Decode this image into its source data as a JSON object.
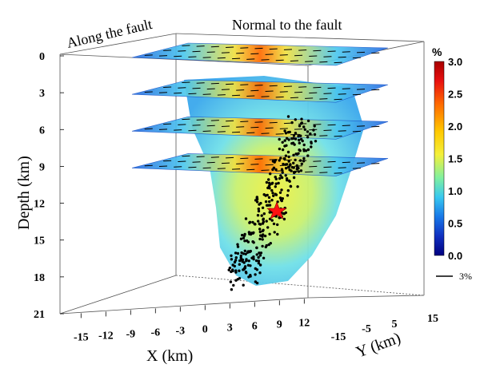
{
  "chart_data": {
    "type": "heatmap",
    "title": "",
    "annotations": {
      "along": "Along the fault",
      "normal": "Normal to the fault"
    },
    "xlabel": "X (km)",
    "ylabel": "Y (km)",
    "zlabel": "Depth (km)",
    "x_ticks": [
      "-15",
      "-12",
      "-9",
      "-6",
      "-3",
      "0",
      "3",
      "6",
      "9",
      "12"
    ],
    "y_ticks": [
      "-15",
      "-5",
      "5",
      "15"
    ],
    "depth_ticks": [
      "0",
      "3",
      "6",
      "9",
      "12",
      "15",
      "18",
      "21"
    ],
    "depth_range": [
      0,
      21
    ],
    "slice_depths": [
      0,
      3,
      6,
      9
    ],
    "colorbar": {
      "unit": "%",
      "range": [
        0.0,
        3.0
      ],
      "ticks": [
        "3.0",
        "2.5",
        "2.0",
        "1.5",
        "1.0",
        "0.5",
        "0.0"
      ],
      "colors": [
        "#a80000",
        "#e81010",
        "#ff6a00",
        "#ffc800",
        "#f4f03a",
        "#80f0a0",
        "#38c8f0",
        "#1878e8",
        "#1030c0",
        "#000080"
      ]
    },
    "scale_bar_label": "3%",
    "mainshock_depth_km": 12.7
  }
}
